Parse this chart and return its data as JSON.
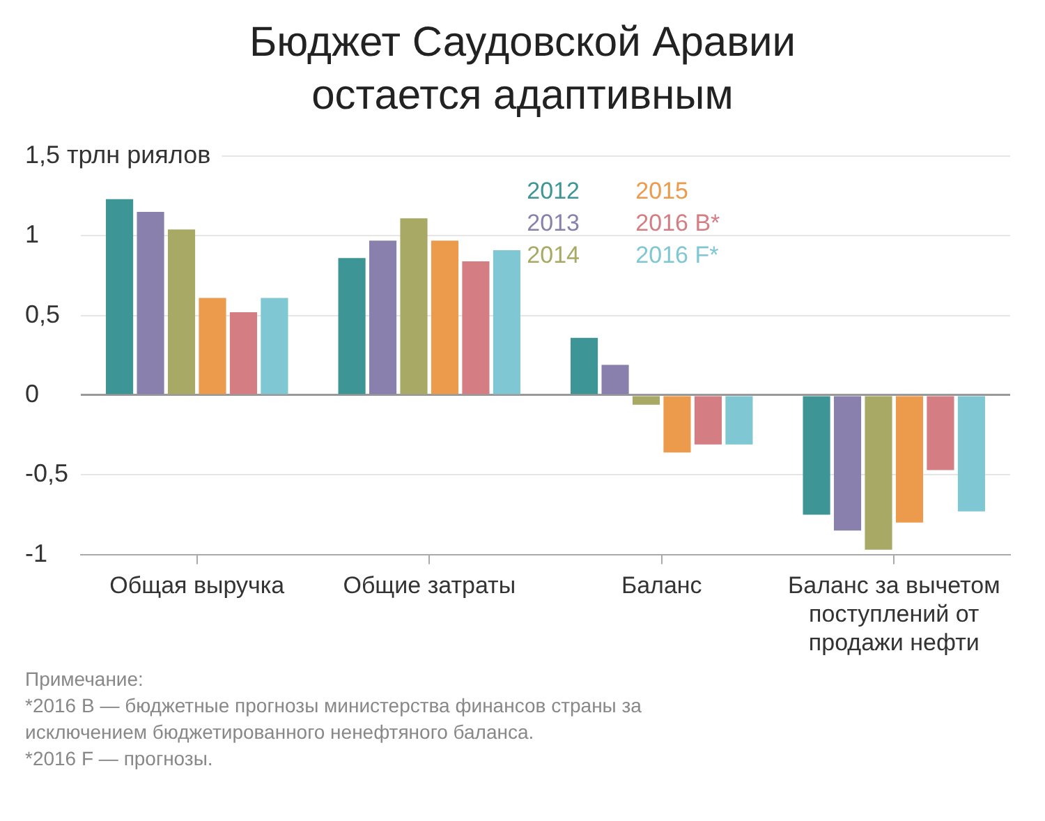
{
  "chart_data": {
    "type": "bar",
    "title": "Бюджет Саудовской Аравии остается адаптивным",
    "categories": [
      "Общая выручка",
      "Общие затраты",
      "Баланс",
      "Баланс за вычетом поступлений от продажи нефти"
    ],
    "series": [
      {
        "name": "2012",
        "color": "#3e9596",
        "values": [
          1.23,
          0.86,
          0.36,
          -0.75
        ]
      },
      {
        "name": "2013",
        "color": "#8a80ad",
        "values": [
          1.15,
          0.97,
          0.19,
          -0.85
        ]
      },
      {
        "name": "2014",
        "color": "#a8a964",
        "values": [
          1.04,
          1.11,
          -0.06,
          -0.97
        ]
      },
      {
        "name": "2015",
        "color": "#ec9a4c",
        "values": [
          0.61,
          0.97,
          -0.36,
          -0.8
        ]
      },
      {
        "name": "2016 B*",
        "color": "#d47e83",
        "values": [
          0.52,
          0.84,
          -0.31,
          -0.47
        ]
      },
      {
        "name": "2016 F*",
        "color": "#7fc8d3",
        "values": [
          0.61,
          0.91,
          -0.31,
          -0.73
        ]
      }
    ],
    "ylim": [
      -1,
      1.5
    ],
    "yticks": [
      -1,
      {
        "value": -0.5,
        "label": "-0,5"
      },
      0,
      {
        "value": 0.5,
        "label": "0,5"
      },
      1,
      {
        "value": 1.5,
        "label": "1,5 трлн риялов"
      }
    ],
    "grid": "y",
    "legend": "top",
    "annotations": [
      "Примечание:",
      "*2016 В — бюджетные прогнозы министерства финансов страны за исключением бюджетированного ненефтяного баланса.",
      "*2016 F — прогнозы."
    ]
  }
}
